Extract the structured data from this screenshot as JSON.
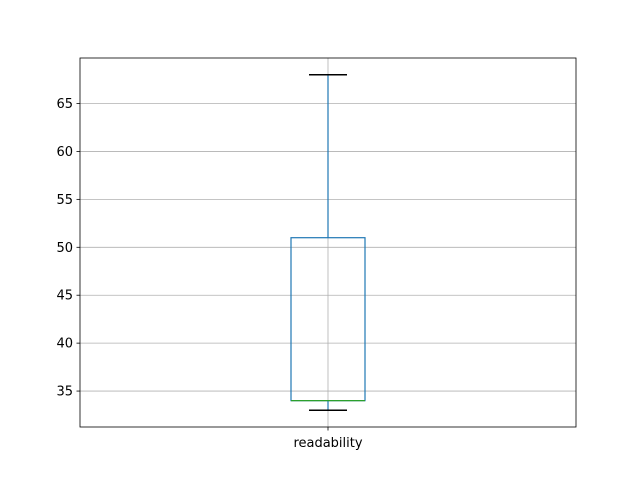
{
  "chart_data": {
    "type": "box",
    "categories": [
      "readability"
    ],
    "boxes": [
      {
        "name": "readability",
        "whisker_low": 33,
        "q1": 34,
        "median": 34,
        "q3": 51,
        "whisker_high": 68
      }
    ],
    "ylim": [
      31.25,
      69.75
    ],
    "yticks": [
      35,
      40,
      45,
      50,
      55,
      60,
      65
    ],
    "grid": true,
    "colors": {
      "box": "#1f77b4",
      "median": "#2ca02c",
      "whisker_cap": "#000000",
      "grid": "#b0b0b0"
    }
  }
}
